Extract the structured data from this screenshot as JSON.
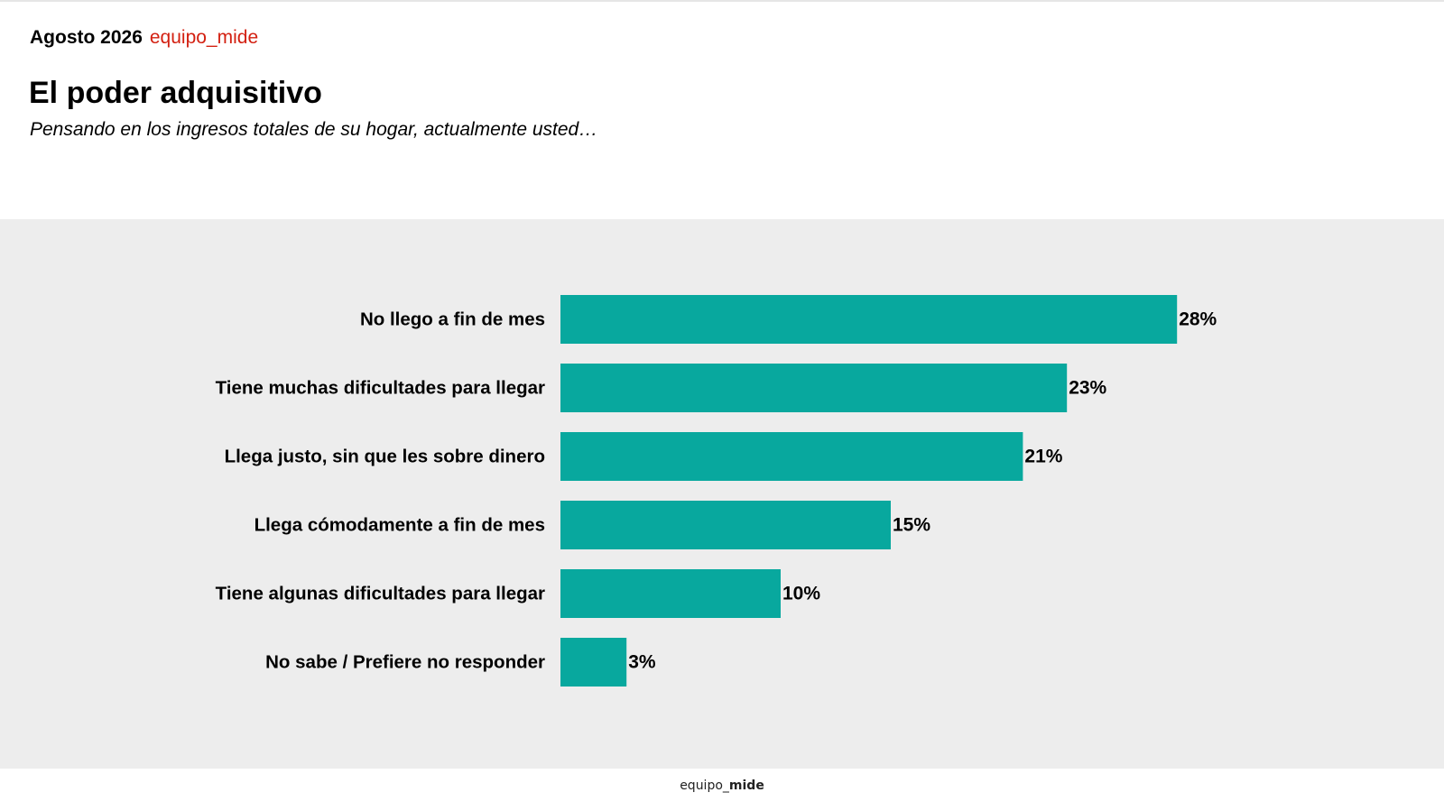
{
  "header": {
    "date": "Agosto 2026",
    "brand": "equipo_mide"
  },
  "page": {
    "title": "El poder adquisitivo",
    "subtitle": "Pensando en los ingresos totales de su hogar, actualmente usted…"
  },
  "footer": {
    "brand_prefix": "equipo_",
    "brand_bold": "mide"
  },
  "colors": {
    "bar": "#08a89e",
    "panel_background": "#ededed",
    "brand_red": "#d32011"
  },
  "chart_data": {
    "type": "bar",
    "orientation": "horizontal",
    "categories": [
      "No llego a fin de mes",
      "Tiene muchas dificultades para llegar",
      "Llega justo, sin que les sobre dinero",
      "Llega cómodamente a fin de mes",
      "Tiene algunas dificultades para llegar",
      "No sabe / Prefiere no responder"
    ],
    "values": [
      28,
      23,
      21,
      15,
      10,
      3
    ],
    "value_labels": [
      "28%",
      "23%",
      "21%",
      "15%",
      "10%",
      "3%"
    ],
    "unit": "%",
    "grid": false,
    "legend": "none"
  }
}
